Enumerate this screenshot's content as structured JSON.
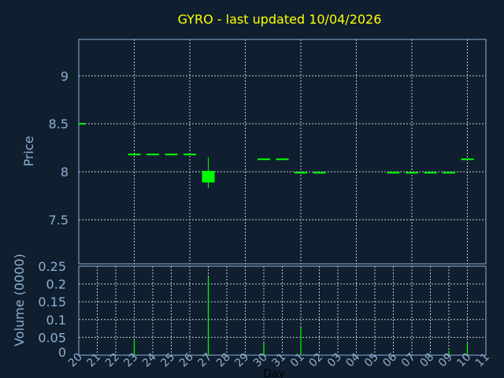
{
  "colors": {
    "background": "#0f1f30",
    "title": "#ffff00",
    "axis": "#8fafd0",
    "grid": "#c8c8c8",
    "candle": "#00ff00",
    "volume": "#00ff00"
  },
  "chart_data": [
    {
      "type": "candlestick",
      "title": "GYRO - last updated 10/04/2026",
      "ylabel": "Price",
      "ylim": [
        7.04,
        9.38
      ],
      "yticks": [
        "7.5",
        "8",
        "8.5",
        "9"
      ],
      "ytick_values": [
        7.5,
        8,
        8.5,
        9
      ],
      "grid": true,
      "categories": [
        "20",
        "21",
        "22",
        "23",
        "24",
        "25",
        "26",
        "27",
        "28",
        "29",
        "30",
        "31",
        "01",
        "02",
        "03",
        "04",
        "05",
        "06",
        "07",
        "08",
        "09",
        "10",
        "11"
      ],
      "candles": [
        {
          "day": "20",
          "open": 8.5,
          "high": 8.5,
          "low": 8.5,
          "close": 8.5
        },
        {
          "day": "23",
          "open": 8.18,
          "high": 8.18,
          "low": 8.18,
          "close": 8.18
        },
        {
          "day": "24",
          "open": 8.18,
          "high": 8.18,
          "low": 8.18,
          "close": 8.18
        },
        {
          "day": "25",
          "open": 8.18,
          "high": 8.18,
          "low": 8.18,
          "close": 8.18
        },
        {
          "day": "26",
          "open": 8.18,
          "high": 8.18,
          "low": 8.18,
          "close": 8.18
        },
        {
          "day": "27",
          "open": 7.88,
          "high": 8.15,
          "low": 7.83,
          "close": 8.0
        },
        {
          "day": "30",
          "open": 8.13,
          "high": 8.13,
          "low": 8.13,
          "close": 8.13
        },
        {
          "day": "31",
          "open": 8.13,
          "high": 8.13,
          "low": 8.13,
          "close": 8.13
        },
        {
          "day": "01",
          "open": 7.99,
          "high": 7.99,
          "low": 7.99,
          "close": 7.99
        },
        {
          "day": "02",
          "open": 7.99,
          "high": 7.99,
          "low": 7.99,
          "close": 7.99
        },
        {
          "day": "06",
          "open": 7.99,
          "high": 7.99,
          "low": 7.99,
          "close": 7.99
        },
        {
          "day": "07",
          "open": 7.99,
          "high": 7.99,
          "low": 7.99,
          "close": 7.99
        },
        {
          "day": "08",
          "open": 7.99,
          "high": 7.99,
          "low": 7.99,
          "close": 7.99
        },
        {
          "day": "09",
          "open": 7.99,
          "high": 7.99,
          "low": 7.99,
          "close": 7.99
        },
        {
          "day": "10",
          "open": 8.13,
          "high": 8.13,
          "low": 8.13,
          "close": 8.13
        }
      ]
    },
    {
      "type": "bar",
      "xlabel": "Day",
      "ylabel": "Volume (0000)",
      "ylim": [
        0,
        0.25
      ],
      "yticks": [
        "0",
        "0.05",
        "0.1",
        "0.15",
        "0.2",
        "0.25"
      ],
      "ytick_values": [
        0,
        0.05,
        0.1,
        0.15,
        0.2,
        0.25
      ],
      "grid": true,
      "bars": [
        {
          "day": "23",
          "value": 0.044
        },
        {
          "day": "27",
          "value": 0.219
        },
        {
          "day": "30",
          "value": 0.033
        },
        {
          "day": "01",
          "value": 0.078
        },
        {
          "day": "06",
          "value": 0.001
        },
        {
          "day": "08",
          "value": 0.001
        },
        {
          "day": "09",
          "value": 0.013
        },
        {
          "day": "10",
          "value": 0.034
        }
      ]
    }
  ]
}
